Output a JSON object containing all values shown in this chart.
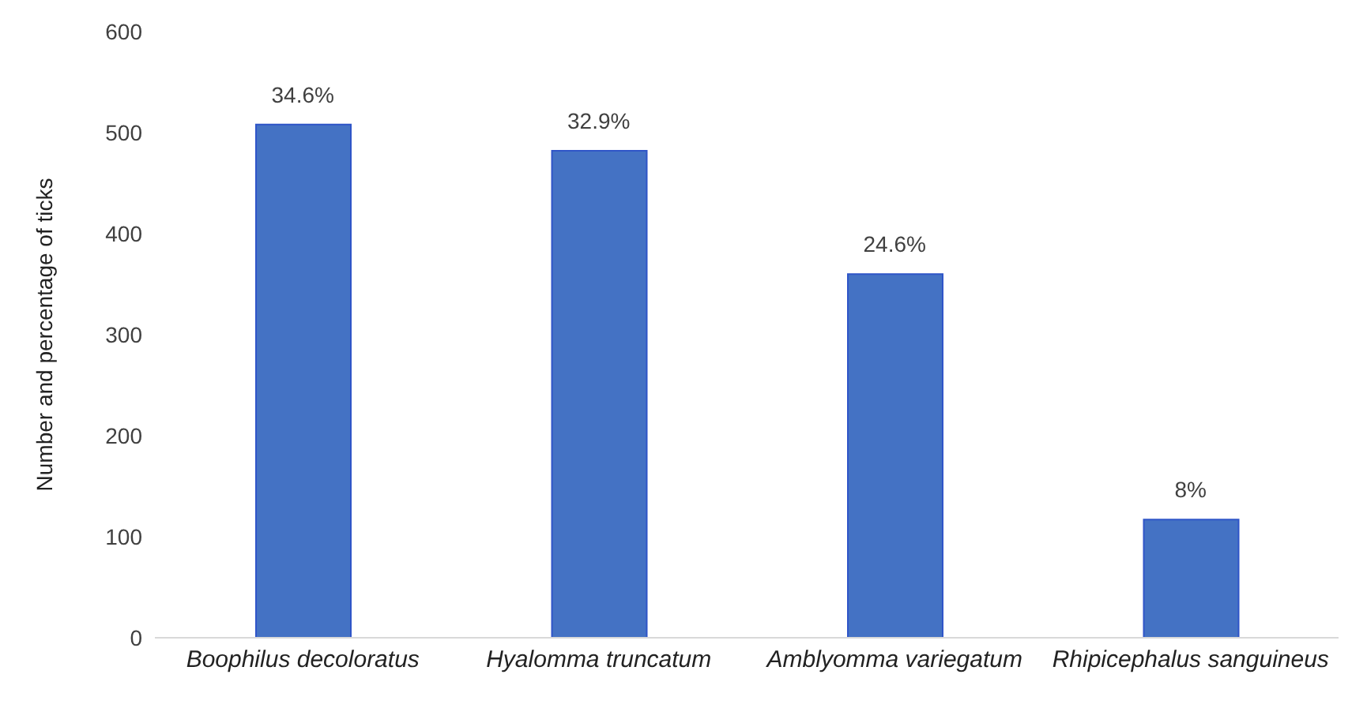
{
  "chart_data": {
    "type": "bar",
    "ylabel": "Number and percentage of ticks",
    "categories": [
      "Boophilus decoloratus",
      "Hyalomma truncatum",
      "Amblyomma variegatum",
      "Rhipicephalus sanguineus"
    ],
    "values": [
      508,
      482,
      360,
      117
    ],
    "annotations": [
      {
        "text": "34.6%",
        "x": "Boophilus decoloratus",
        "y": 508
      },
      {
        "text": "32.9%",
        "x": "Hyalomma truncatum",
        "y": 482
      },
      {
        "text": "24.6%",
        "x": "Amblyomma variegatum",
        "y": 360
      },
      {
        "text": "8%",
        "x": "Rhipicephalus sanguineus",
        "y": 117
      }
    ],
    "color": "#4472c4",
    "ylim": [
      0,
      600
    ],
    "yticks": [
      0,
      100,
      200,
      300,
      400,
      500,
      600
    ],
    "grid": false
  }
}
